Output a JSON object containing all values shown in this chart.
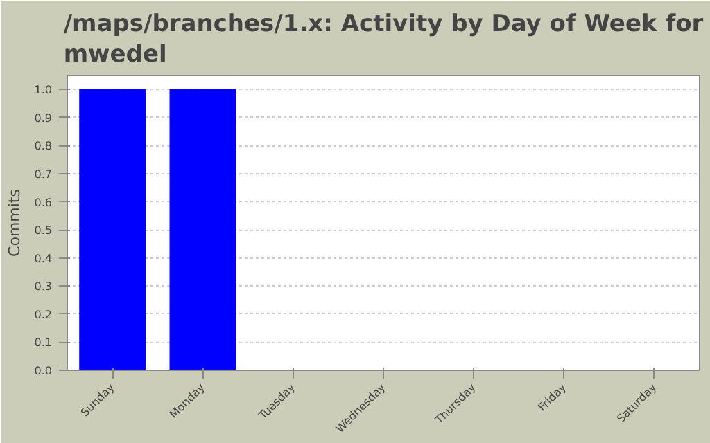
{
  "chart_data": {
    "type": "bar",
    "title": "/maps/branches/1.x: Activity by Day of Week for mwedel",
    "ylabel": "Commits",
    "categories": [
      "Sunday",
      "Monday",
      "Tuesday",
      "Wednesday",
      "Thursday",
      "Friday",
      "Saturday"
    ],
    "values": [
      1,
      1,
      0,
      0,
      0,
      0,
      0
    ],
    "color": "#0000ff",
    "ylim": [
      0,
      1.05
    ],
    "yticks": [
      {
        "value": 0,
        "label": "0.0"
      },
      {
        "value": 0.1,
        "label": "0.1"
      },
      {
        "value": 0.2,
        "label": "0.2"
      },
      {
        "value": 0.3,
        "label": "0.3"
      },
      {
        "value": 0.4,
        "label": "0.4"
      },
      {
        "value": 0.5,
        "label": "0.5"
      },
      {
        "value": 0.6,
        "label": "0.6"
      },
      {
        "value": 0.7,
        "label": "0.7"
      },
      {
        "value": 0.8,
        "label": "0.8"
      },
      {
        "value": 0.9,
        "label": "0.9"
      },
      {
        "value": 1,
        "label": "1.0"
      }
    ],
    "grid": "y"
  }
}
